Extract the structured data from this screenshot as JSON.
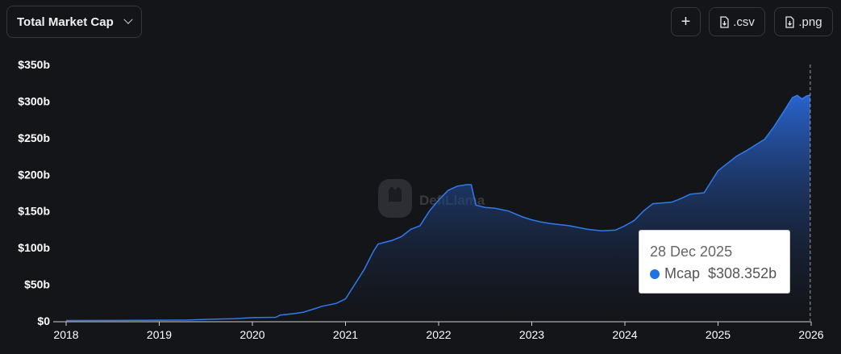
{
  "header": {
    "metric_label": "Total Market Cap",
    "add_label": "+",
    "csv_label": ".csv",
    "png_label": ".png"
  },
  "watermark": "DefiLlama",
  "tooltip": {
    "date": "28 Dec 2025",
    "series": "Mcap",
    "value": "$308.352b",
    "dot_color": "#2172e5"
  },
  "colors": {
    "line": "#2f7bf0",
    "background": "#141519"
  },
  "chart_data": {
    "type": "area",
    "x_ticks": [
      "2018",
      "2019",
      "2020",
      "2021",
      "2022",
      "2023",
      "2024",
      "2025",
      "2026"
    ],
    "y_ticks": [
      "$0",
      "$50b",
      "$100b",
      "$150b",
      "$200b",
      "$250b",
      "$300b",
      "$350b"
    ],
    "ylim": [
      0,
      350
    ],
    "xlim": [
      2018.0,
      2026.0
    ],
    "y_unit": "billions USD",
    "series": [
      {
        "name": "Mcap",
        "points": [
          [
            2018.0,
            0.5
          ],
          [
            2018.5,
            0.7
          ],
          [
            2019.0,
            1.0
          ],
          [
            2019.3,
            1.2
          ],
          [
            2019.6,
            2.5
          ],
          [
            2019.8,
            3.0
          ],
          [
            2020.0,
            4.5
          ],
          [
            2020.25,
            5.0
          ],
          [
            2020.3,
            8.0
          ],
          [
            2020.45,
            10.0
          ],
          [
            2020.55,
            12.0
          ],
          [
            2020.65,
            16.0
          ],
          [
            2020.75,
            20.0
          ],
          [
            2020.9,
            24.0
          ],
          [
            2021.0,
            30.0
          ],
          [
            2021.1,
            50.0
          ],
          [
            2021.2,
            70.0
          ],
          [
            2021.3,
            95.0
          ],
          [
            2021.35,
            105.0
          ],
          [
            2021.5,
            110.0
          ],
          [
            2021.6,
            115.0
          ],
          [
            2021.7,
            125.0
          ],
          [
            2021.8,
            130.0
          ],
          [
            2021.9,
            150.0
          ],
          [
            2022.0,
            165.0
          ],
          [
            2022.1,
            178.0
          ],
          [
            2022.2,
            184.0
          ],
          [
            2022.3,
            186.0
          ],
          [
            2022.35,
            186.0
          ],
          [
            2022.4,
            158.0
          ],
          [
            2022.5,
            155.0
          ],
          [
            2022.6,
            154.0
          ],
          [
            2022.75,
            150.0
          ],
          [
            2022.9,
            142.0
          ],
          [
            2023.0,
            138.0
          ],
          [
            2023.1,
            135.0
          ],
          [
            2023.2,
            133.0
          ],
          [
            2023.4,
            130.0
          ],
          [
            2023.6,
            125.0
          ],
          [
            2023.75,
            123.0
          ],
          [
            2023.9,
            124.0
          ],
          [
            2024.0,
            130.0
          ],
          [
            2024.1,
            137.0
          ],
          [
            2024.2,
            150.0
          ],
          [
            2024.3,
            160.0
          ],
          [
            2024.5,
            162.0
          ],
          [
            2024.6,
            167.0
          ],
          [
            2024.7,
            173.0
          ],
          [
            2024.85,
            175.0
          ],
          [
            2024.9,
            185.0
          ],
          [
            2025.0,
            205.0
          ],
          [
            2025.1,
            215.0
          ],
          [
            2025.2,
            225.0
          ],
          [
            2025.3,
            232.0
          ],
          [
            2025.4,
            240.0
          ],
          [
            2025.5,
            248.0
          ],
          [
            2025.6,
            265.0
          ],
          [
            2025.7,
            285.0
          ],
          [
            2025.8,
            305.0
          ],
          [
            2025.85,
            308.0
          ],
          [
            2025.9,
            303.0
          ],
          [
            2025.95,
            307.0
          ],
          [
            2025.99,
            308.352
          ]
        ]
      }
    ],
    "hover_x": 2025.99,
    "grid": false
  }
}
